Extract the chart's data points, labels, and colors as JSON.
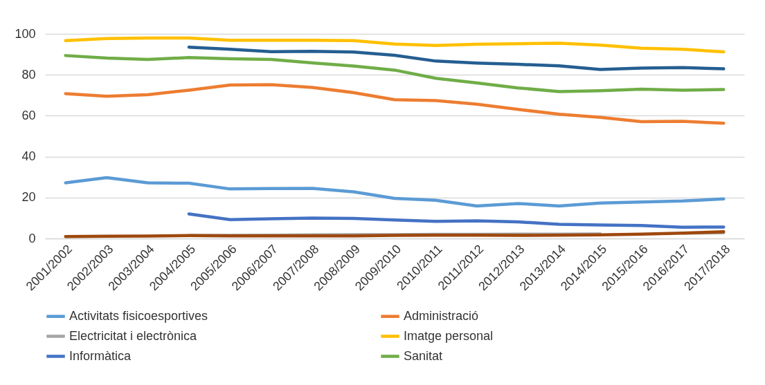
{
  "chart_data": {
    "type": "line",
    "categories": [
      "2001/2002",
      "2002/2003",
      "2003/2004",
      "2004/2005",
      "2005/2006",
      "2006/2007",
      "2007/2008",
      "2008/2009",
      "2009/2010",
      "2010/2011",
      "2011/2012",
      "2012/2013",
      "2013/2014",
      "2014/2015",
      "2015/2016",
      "2016/2017",
      "2017/2018"
    ],
    "ylim": [
      0,
      100
    ],
    "yticks": [
      0,
      20,
      40,
      60,
      80,
      100
    ],
    "grid": "y",
    "legend": "bottom",
    "line_style": "solid",
    "series": [
      {
        "name": "Activitats fisicoesportives",
        "color": "#5b9bd5",
        "values": [
          27.2,
          29.7,
          27.2,
          27,
          24.2,
          24.4,
          24.5,
          22.8,
          19.6,
          18.7,
          15.9,
          17.1,
          15.9,
          17.3,
          17.8,
          18.3,
          19.3
        ]
      },
      {
        "name": "Administració",
        "color": "#ed7d31",
        "values": [
          70.8,
          69.5,
          70.3,
          72.5,
          75,
          75.2,
          73.8,
          71.3,
          67.8,
          67.4,
          65.6,
          63.1,
          60.7,
          59.2,
          57.1,
          57.3,
          56.3
        ]
      },
      {
        "name": "Electricitat i electrònica",
        "color": "#a5a5a5",
        "values": [
          null,
          null,
          null,
          1.4,
          1.5,
          1.6,
          1.8,
          1.9,
          1.9,
          2,
          2,
          2.1,
          2.1,
          2.2,
          null,
          2.6,
          2.8
        ]
      },
      {
        "name": "Imatge personal",
        "color": "#ffc000",
        "values": [
          96.7,
          97.7,
          98,
          98,
          96.9,
          96.9,
          96.9,
          96.7,
          95,
          94.3,
          94.9,
          95.2,
          95.4,
          94.5,
          93,
          92.5,
          91.2
        ]
      },
      {
        "name": "Informàtica",
        "color": "#4472c4",
        "values": [
          null,
          null,
          null,
          12,
          9.2,
          9.6,
          10,
          9.8,
          9,
          8.4,
          8.6,
          8.1,
          6.9,
          6.6,
          6.3,
          5.5,
          5.6
        ]
      },
      {
        "name": "Sanitat",
        "color": "#70ad47",
        "values": [
          89.4,
          88.2,
          87.5,
          88.4,
          87.8,
          87.5,
          85.8,
          84.3,
          82.3,
          78.3,
          76,
          73.6,
          71.8,
          72.2,
          73,
          72.5,
          72.8
        ]
      },
      {
        "color": "#255e91",
        "values": [
          null,
          null,
          null,
          93.5,
          92.5,
          91.3,
          91.5,
          91.1,
          89.5,
          86.7,
          85.7,
          85.1,
          84.4,
          82.6,
          83.3,
          83.5,
          82.9
        ]
      },
      {
        "color": "#9e480e",
        "values": [
          0.9,
          1.1,
          1.2,
          1.4,
          1.3,
          1.3,
          1.3,
          1.3,
          1.5,
          1.6,
          1.6,
          1.5,
          1.6,
          1.8,
          2.1,
          2.6,
          3.3
        ]
      }
    ]
  }
}
